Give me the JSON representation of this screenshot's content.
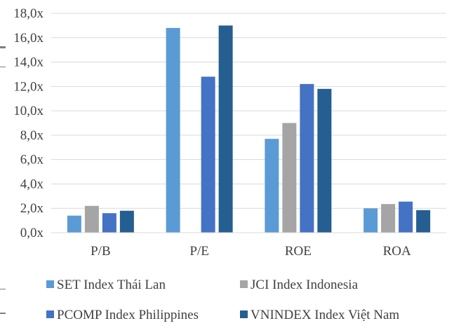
{
  "chart_data": {
    "type": "bar",
    "title": "",
    "xlabel": "",
    "ylabel": "",
    "ylim": [
      0,
      18
    ],
    "y_tick_step": 2,
    "y_tick_labels": [
      "0,0x",
      "2,0x",
      "4,0x",
      "6,0x",
      "8,0x",
      "10,0x",
      "12,0x",
      "14,0x",
      "16,0x",
      "18,0x"
    ],
    "grid": true,
    "legend_position": "bottom",
    "categories": [
      "P/B",
      "P/E",
      "ROE",
      "ROA"
    ],
    "series": [
      {
        "name": "SET Index Thái Lan",
        "color": "#5b9bd5",
        "values": [
          1.4,
          16.8,
          7.7,
          2.0
        ]
      },
      {
        "name": "JCI Index Indonesia",
        "color": "#a5a5a5",
        "values": [
          2.2,
          0,
          9.0,
          2.35
        ]
      },
      {
        "name": "PCOMP Index Philippines",
        "color": "#4472c4",
        "values": [
          1.6,
          12.8,
          12.2,
          2.55
        ]
      },
      {
        "name": "VNINDEX Index Việt Nam",
        "color": "#255e91",
        "values": [
          1.8,
          17.0,
          11.8,
          1.85
        ]
      }
    ]
  }
}
